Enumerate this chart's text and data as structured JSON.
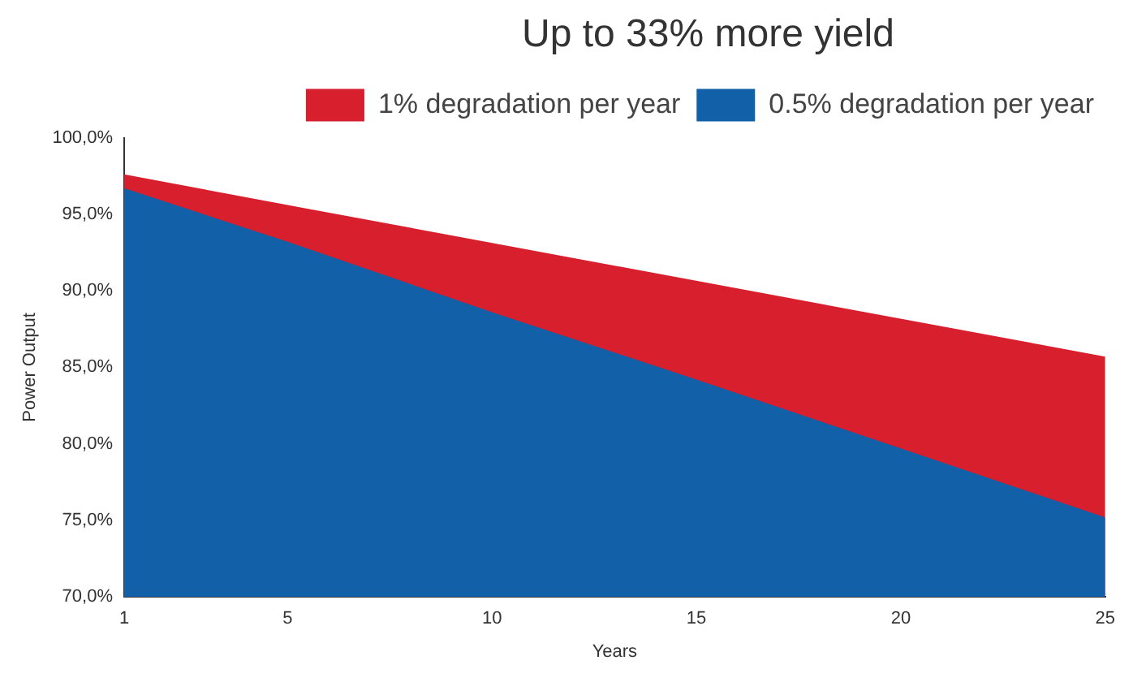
{
  "chart_data": {
    "type": "area",
    "legend_title": "Up to 33% more yield",
    "xlabel": "Years",
    "ylabel": "Power Output",
    "x": [
      1,
      5,
      10,
      15,
      20,
      25
    ],
    "series": [
      {
        "name": "1% degradation per year",
        "color": "#d71f2d",
        "x": [
          1,
          5,
          25
        ],
        "values": [
          97.6,
          95.6,
          85.7
        ]
      },
      {
        "name": "0.5% degradation per year",
        "color": "#1160a8",
        "values": [
          96.7,
          93.2,
          88.6,
          84.2,
          79.7,
          75.2
        ]
      }
    ],
    "xlim": [
      1,
      25
    ],
    "xticks": [
      1,
      5,
      10,
      15,
      20,
      25
    ],
    "ylim": [
      70,
      100
    ],
    "yticks": [
      {
        "value": 70,
        "label": "70,0%"
      },
      {
        "value": 75,
        "label": "75,0%"
      },
      {
        "value": 80,
        "label": "80,0%"
      },
      {
        "value": 85,
        "label": "85,0%"
      },
      {
        "value": 90,
        "label": "90,0%"
      },
      {
        "value": 95,
        "label": "95,0%"
      },
      {
        "value": 100,
        "label": "100,0%"
      }
    ],
    "grid": false,
    "legend": "top right"
  }
}
